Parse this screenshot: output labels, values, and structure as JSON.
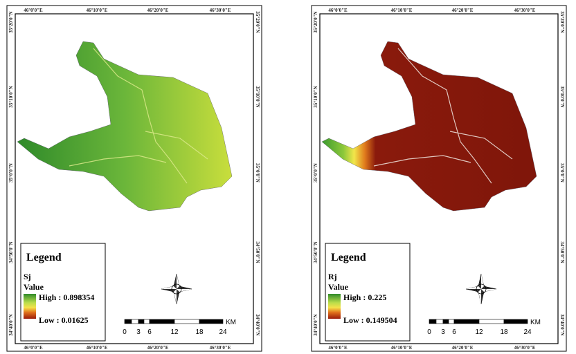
{
  "maps": [
    {
      "top_labels": [
        "46°0'0\"E",
        "46°10'0\"E",
        "46°20'0\"E",
        "46°30'0\"E"
      ],
      "bottom_labels": [
        "46°0'0\"E",
        "46°10'0\"E",
        "46°20'0\"E",
        "46°30'0\"E"
      ],
      "left_labels": [
        "35°20'0\"N",
        "35°10'0\"N",
        "35°0'0\"N",
        "34°50'0\"N",
        "34°40'0\"N"
      ],
      "right_labels": [
        "35°20'0\"N",
        "35°10'0\"N",
        "35°0'0\"N",
        "34°50'0\"N",
        "34°40'0\"N"
      ],
      "legend": {
        "title": "Legend",
        "layer": "Sj",
        "field": "Value",
        "high": "High : 0.898354",
        "low": "Low : 0.01625"
      },
      "scale": {
        "ticks": [
          "0",
          "3",
          "6",
          "12",
          "18",
          "24"
        ],
        "unit": "KM"
      }
    },
    {
      "top_labels": [
        "46°0'0\"E",
        "46°10'0\"E",
        "46°20'0\"E",
        "46°30'0\"E"
      ],
      "bottom_labels": [
        "46°0'0\"E",
        "46°10'0\"E",
        "46°20'0\"E",
        "46°30'0\"E"
      ],
      "left_labels": [
        "35°20'0\"N",
        "35°10'0\"N",
        "35°0'0\"N",
        "34°50'0\"N",
        "34°40'0\"N"
      ],
      "right_labels": [
        "35°20'0\"N",
        "35°10'0\"N",
        "35°0'0\"N",
        "34°50'0\"N",
        "34°40'0\"N"
      ],
      "legend": {
        "title": "Legend",
        "layer": "Rj",
        "field": "Value",
        "high": "High : 0.225",
        "low": "Low : 0.149504"
      },
      "scale": {
        "ticks": [
          "0",
          "3",
          "6",
          "12",
          "18",
          "24"
        ],
        "unit": "KM"
      }
    }
  ]
}
